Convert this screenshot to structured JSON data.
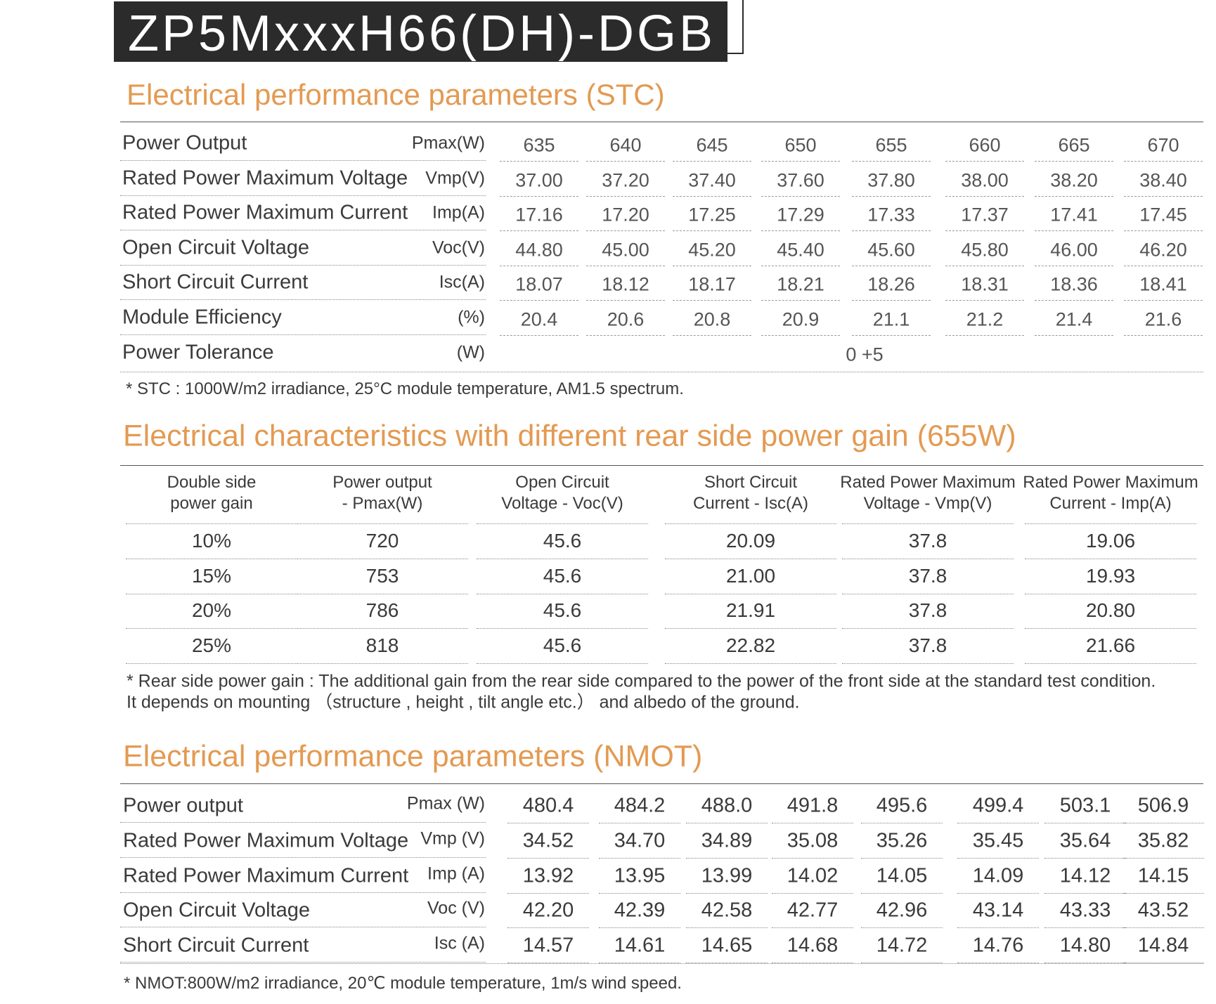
{
  "header": {
    "title": "ZP5MxxxH66(DH)-DGB"
  },
  "stc": {
    "title": "Electrical performance parameters (STC)",
    "rows": [
      {
        "label": "Power Output",
        "unit": "Pmax(W)",
        "values": [
          "635",
          "640",
          "645",
          "650",
          "655",
          "660",
          "665",
          "670"
        ]
      },
      {
        "label": "Rated Power Maximum Voltage",
        "unit": "Vmp(V)",
        "values": [
          "37.00",
          "37.20",
          "37.40",
          "37.60",
          "37.80",
          "38.00",
          "38.20",
          "38.40"
        ]
      },
      {
        "label": "Rated Power Maximum Current",
        "unit": "Imp(A)",
        "values": [
          "17.16",
          "17.20",
          "17.25",
          "17.29",
          "17.33",
          "17.37",
          "17.41",
          "17.45"
        ]
      },
      {
        "label": "Open Circuit Voltage",
        "unit": "Voc(V)",
        "values": [
          "44.80",
          "45.00",
          "45.20",
          "45.40",
          "45.60",
          "45.80",
          "46.00",
          "46.20"
        ]
      },
      {
        "label": "Short Circuit Current",
        "unit": "Isc(A)",
        "values": [
          "18.07",
          "18.12",
          "18.17",
          "18.21",
          "18.26",
          "18.31",
          "18.36",
          "18.41"
        ]
      },
      {
        "label": "Module Efficiency",
        "unit": "(%)",
        "values": [
          "20.4",
          "20.6",
          "20.8",
          "20.9",
          "21.1",
          "21.2",
          "21.4",
          "21.6"
        ]
      }
    ],
    "tolerance": {
      "label": "Power Tolerance",
      "unit": "(W)",
      "value": "0 +5"
    },
    "note": "* STC : 1000W/m2 irradiance, 25°C module temperature, AM1.5 spectrum."
  },
  "gain": {
    "title": "Electrical characteristics with different rear side power gain (655W)",
    "headers": [
      [
        "Double side",
        "power gain"
      ],
      [
        "Power output",
        "- Pmax(W)"
      ],
      [
        "Open Circuit",
        "Voltage - Voc(V)"
      ],
      [
        "Short Circuit",
        "Current - Isc(A)"
      ],
      [
        "Rated Power Maximum",
        "Voltage - Vmp(V)"
      ],
      [
        "Rated Power Maximum",
        "Current - Imp(A)"
      ]
    ],
    "rows": [
      [
        "10%",
        "720",
        "45.6",
        "20.09",
        "37.8",
        "19.06"
      ],
      [
        "15%",
        "753",
        "45.6",
        "21.00",
        "37.8",
        "19.93"
      ],
      [
        "20%",
        "786",
        "45.6",
        "21.91",
        "37.8",
        "20.80"
      ],
      [
        "25%",
        "818",
        "45.6",
        "22.82",
        "37.8",
        "21.66"
      ]
    ],
    "notes": [
      "* Rear side power gain : The additional gain from the rear side compared to the power of the front side at the standard test condition.",
      "It depends on mounting （structure , height , tilt angle etc.） and albedo of the ground."
    ]
  },
  "nmot": {
    "title": "Electrical performance parameters  (NMOT)",
    "rows": [
      {
        "label": "Power output",
        "unit": "Pmax (W)",
        "values": [
          "480.4",
          "484.2",
          "488.0",
          "491.8",
          "495.6",
          "499.4",
          "503.1",
          "506.9"
        ]
      },
      {
        "label": "Rated Power Maximum Voltage",
        "unit": "Vmp (V)",
        "values": [
          "34.52",
          "34.70",
          "34.89",
          "35.08",
          "35.26",
          "35.45",
          "35.64",
          "35.82"
        ]
      },
      {
        "label": "Rated Power Maximum Current",
        "unit": "Imp (A)",
        "values": [
          "13.92",
          "13.95",
          "13.99",
          "14.02",
          "14.05",
          "14.09",
          "14.12",
          "14.15"
        ]
      },
      {
        "label": "Open Circuit Voltage",
        "unit": "Voc (V)",
        "values": [
          "42.20",
          "42.39",
          "42.58",
          "42.77",
          "42.96",
          "43.14",
          "43.33",
          "43.52"
        ]
      },
      {
        "label": "Short Circuit Current",
        "unit": "Isc (A)",
        "values": [
          "14.57",
          "14.61",
          "14.65",
          "14.68",
          "14.72",
          "14.76",
          "14.80",
          "14.84"
        ]
      }
    ],
    "note": "* NMOT:800W/m2 irradiance, 20℃ module temperature, 1m/s wind speed."
  }
}
